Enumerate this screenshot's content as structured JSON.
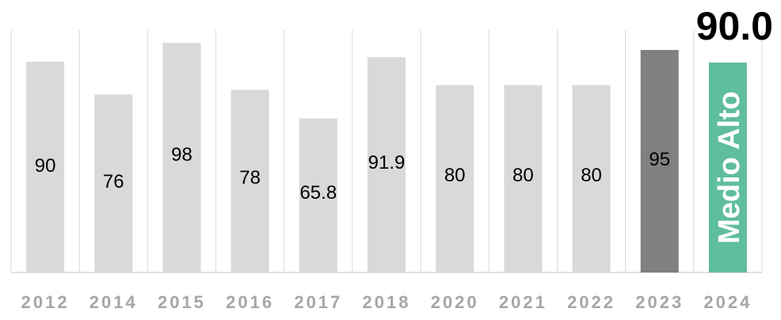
{
  "headline_value": "90.0",
  "colors": {
    "bar_default": "#d9d9d9",
    "bar_highlight": "#808080",
    "bar_level": "#5fbe9c",
    "grid": "#d9d9d9",
    "axis": "#d9d9d9",
    "label_text": "#000000",
    "tick_text": "#a6a6a6",
    "level_text": "#ffffff"
  },
  "chart_data": {
    "type": "bar",
    "title": "",
    "xlabel": "",
    "ylabel": "",
    "categories": [
      "2012",
      "2014",
      "2015",
      "2016",
      "2017",
      "2018",
      "2020",
      "2021",
      "2022",
      "2023",
      "2024"
    ],
    "values": [
      90,
      76,
      98,
      78,
      65.8,
      91.9,
      80,
      80,
      80,
      95,
      90.0
    ],
    "data_labels": [
      "90",
      "76",
      "98",
      "78",
      "65.8",
      "91.9",
      "80",
      "80",
      "80",
      "95",
      "Medio Alto"
    ],
    "highlight_category": "2023",
    "level_category": "2024",
    "ylim": [
      0,
      100
    ],
    "grid": true
  }
}
